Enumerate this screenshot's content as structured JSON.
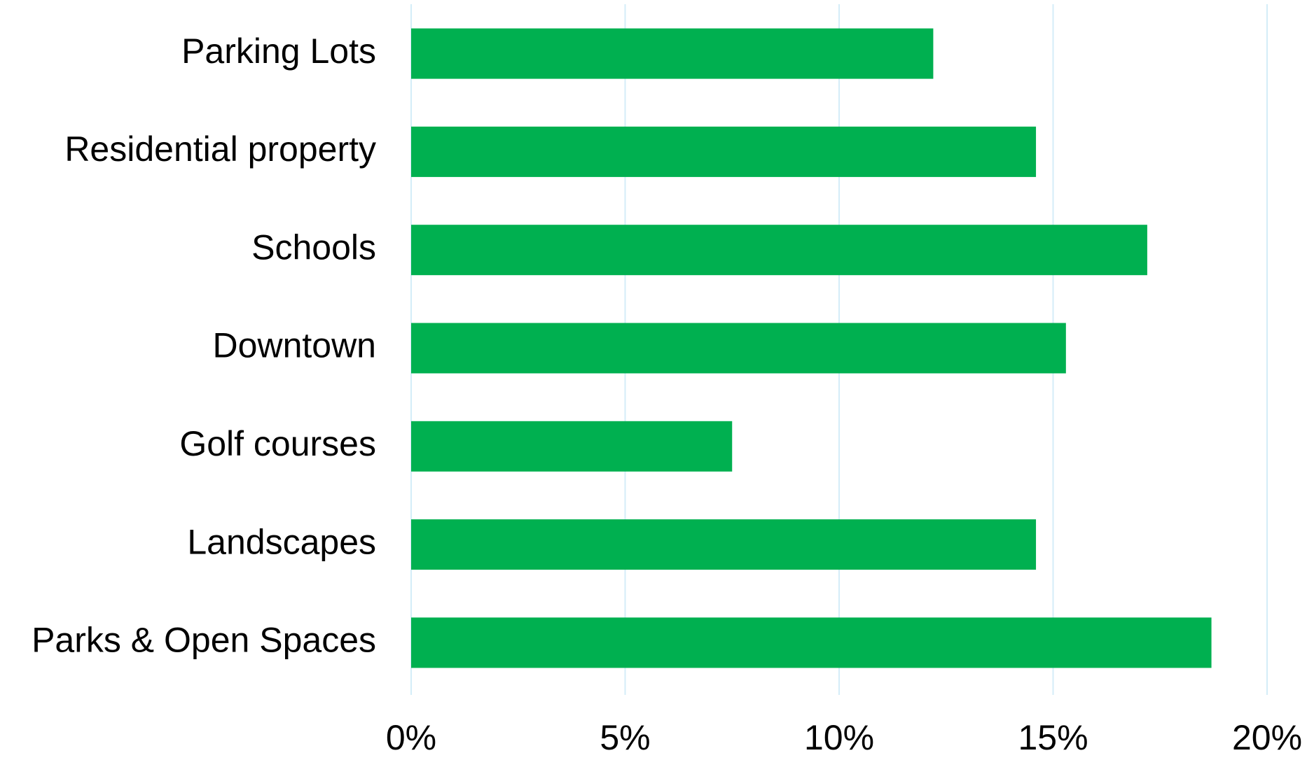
{
  "chart_data": {
    "type": "bar",
    "orientation": "horizontal",
    "categories": [
      "Parking Lots",
      "Residential property",
      "Schools",
      "Downtown",
      "Golf courses",
      "Landscapes",
      "Parks & Open Spaces"
    ],
    "values": [
      12.2,
      14.6,
      17.2,
      15.3,
      7.5,
      14.6,
      18.7
    ],
    "color": "#00b050",
    "xlim": [
      0,
      20
    ],
    "xticks": [
      {
        "value": 0,
        "label": "0%"
      },
      {
        "value": 5,
        "label": "5%"
      },
      {
        "value": 10,
        "label": "10%"
      },
      {
        "value": 15,
        "label": "15%"
      },
      {
        "value": 20,
        "label": "20%"
      }
    ],
    "grid": true
  }
}
